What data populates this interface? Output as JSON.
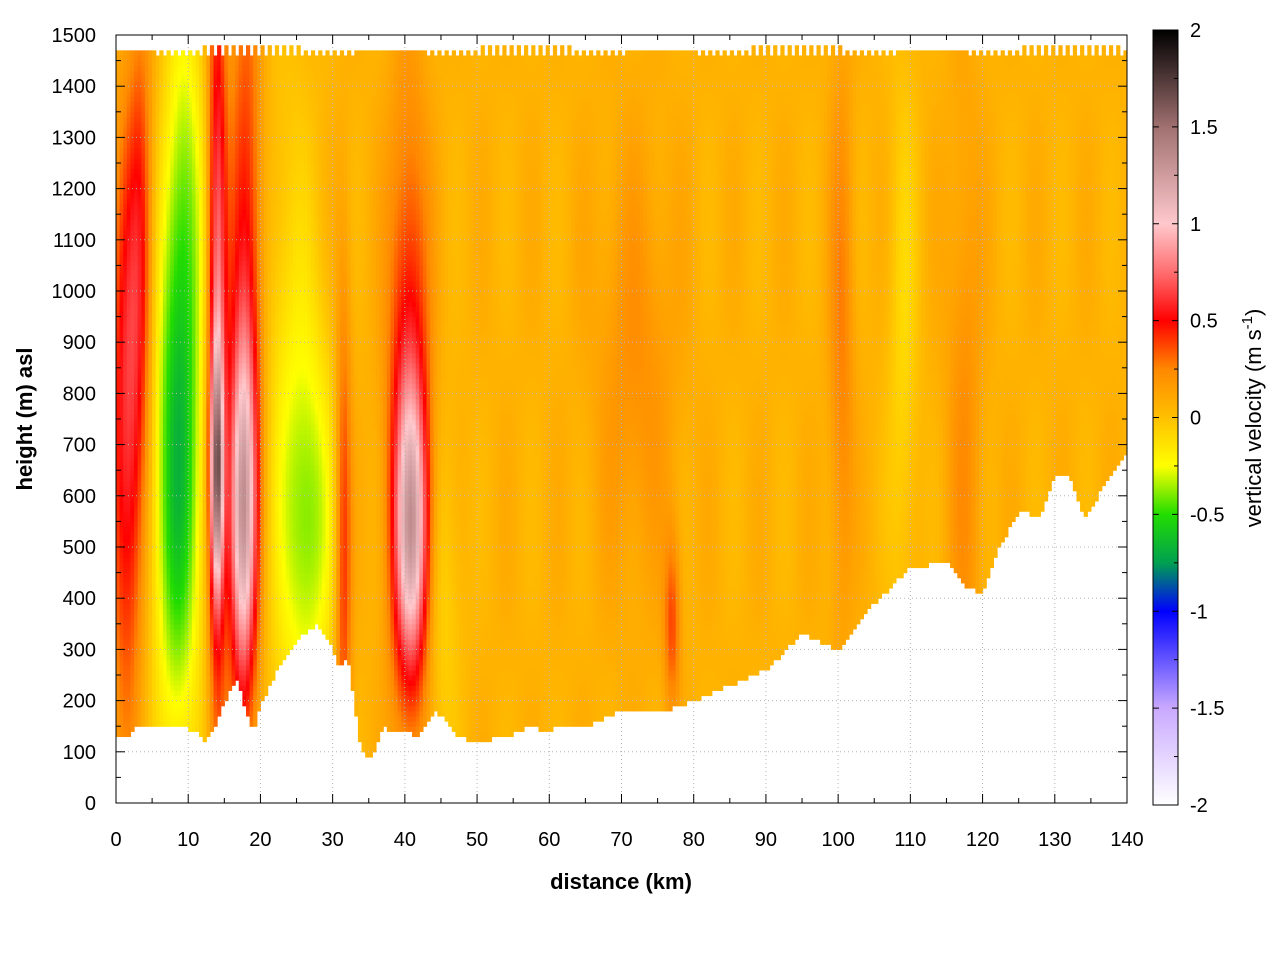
{
  "chart_data": {
    "type": "heatmap",
    "title": "",
    "xlabel": "distance (km)",
    "ylabel": "height (m) asl",
    "xlim": [
      0,
      140
    ],
    "ylim": [
      0,
      1500
    ],
    "x_ticks": [
      0,
      10,
      20,
      30,
      40,
      50,
      60,
      70,
      80,
      90,
      100,
      110,
      120,
      130,
      140
    ],
    "y_ticks": [
      0,
      100,
      200,
      300,
      400,
      500,
      600,
      700,
      800,
      900,
      1000,
      1100,
      1200,
      1300,
      1400,
      1500
    ],
    "grid": true,
    "colorbar": {
      "label_main": "vertical velocity (m s",
      "label_sup": "-1",
      "label_end": ")",
      "range": [
        -2,
        2
      ],
      "ticks": [
        "2",
        "1.5",
        "1",
        "0.5",
        "0",
        "-0.5",
        "-1",
        "-1.5",
        "-2"
      ],
      "tick_values": [
        2,
        1.5,
        1,
        0.5,
        0,
        -0.5,
        -1,
        -1.5,
        -2
      ],
      "colors": [
        {
          "value": -2.0,
          "color": "#ffffff"
        },
        {
          "value": -1.5,
          "color": "#c9a9ff"
        },
        {
          "value": -1.0,
          "color": "#0000ff"
        },
        {
          "value": -0.75,
          "color": "#00a050"
        },
        {
          "value": -0.5,
          "color": "#22dd00"
        },
        {
          "value": -0.25,
          "color": "#ffff00"
        },
        {
          "value": 0.0,
          "color": "#ffc000"
        },
        {
          "value": 0.25,
          "color": "#ff8800"
        },
        {
          "value": 0.5,
          "color": "#ff0000"
        },
        {
          "value": 0.75,
          "color": "#ff6e70"
        },
        {
          "value": 1.0,
          "color": "#ffc8cc"
        },
        {
          "value": 1.5,
          "color": "#a07070"
        },
        {
          "value": 2.0,
          "color": "#000000"
        }
      ]
    },
    "ground_profile": {
      "x": [
        0,
        1.5,
        3,
        5,
        7,
        9,
        11,
        12.5,
        14,
        16,
        17,
        18,
        19,
        20,
        22,
        24,
        26,
        28,
        29,
        30,
        31,
        32,
        33,
        34,
        35,
        36,
        37,
        38,
        40,
        42,
        44,
        45,
        47,
        50,
        52,
        55,
        57,
        60,
        62,
        65,
        70,
        75,
        80,
        85,
        90,
        95,
        100,
        105,
        110,
        115,
        118,
        120,
        122,
        125,
        128,
        130,
        132,
        134,
        136,
        138,
        140
      ],
      "height": [
        130,
        125,
        150,
        145,
        155,
        150,
        140,
        120,
        160,
        230,
        240,
        175,
        140,
        190,
        250,
        300,
        330,
        350,
        330,
        300,
        260,
        290,
        200,
        100,
        85,
        110,
        150,
        140,
        140,
        130,
        180,
        170,
        135,
        115,
        125,
        135,
        150,
        140,
        155,
        150,
        180,
        175,
        200,
        230,
        260,
        330,
        300,
        390,
        460,
        470,
        420,
        410,
        490,
        570,
        560,
        640,
        645,
        560,
        600,
        650,
        690
      ]
    },
    "top_height": 1480,
    "features": [
      {
        "x": 1.5,
        "height": 720,
        "sigma_x": 1.6,
        "sigma_h": 380,
        "value": 0.55
      },
      {
        "x": 3.5,
        "height": 1100,
        "sigma_x": 1.2,
        "sigma_h": 300,
        "value": 0.35
      },
      {
        "x": 8.5,
        "height": 620,
        "sigma_x": 2.4,
        "sigma_h": 360,
        "value": -0.65
      },
      {
        "x": 9.5,
        "height": 1200,
        "sigma_x": 2.0,
        "sigma_h": 300,
        "value": -0.35
      },
      {
        "x": 14,
        "height": 900,
        "sigma_x": 0.9,
        "sigma_h": 520,
        "value": 0.75
      },
      {
        "x": 14,
        "height": 650,
        "sigma_x": 0.6,
        "sigma_h": 160,
        "value": 1.0
      },
      {
        "x": 17.5,
        "height": 560,
        "sigma_x": 1.3,
        "sigma_h": 230,
        "value": 0.9
      },
      {
        "x": 18,
        "height": 900,
        "sigma_x": 1.6,
        "sigma_h": 500,
        "value": 0.5
      },
      {
        "x": 24,
        "height": 700,
        "sigma_x": 3.0,
        "sigma_h": 500,
        "value": -0.2
      },
      {
        "x": 27,
        "height": 550,
        "sigma_x": 2.5,
        "sigma_h": 250,
        "value": -0.35
      },
      {
        "x": 31.5,
        "height": 500,
        "sigma_x": 0.8,
        "sigma_h": 350,
        "value": 0.4
      },
      {
        "x": 41,
        "height": 530,
        "sigma_x": 1.7,
        "sigma_h": 200,
        "value": 0.9
      },
      {
        "x": 40.5,
        "height": 800,
        "sigma_x": 2.0,
        "sigma_h": 400,
        "value": 0.45
      },
      {
        "x": 45,
        "height": 400,
        "sigma_x": 2.0,
        "sigma_h": 250,
        "value": -0.15
      },
      {
        "x": 77,
        "height": 350,
        "sigma_x": 0.8,
        "sigma_h": 120,
        "value": 0.3
      },
      {
        "x": 72,
        "height": 850,
        "sigma_x": 4.0,
        "sigma_h": 300,
        "value": 0.15
      },
      {
        "x": 100.5,
        "height": 900,
        "sigma_x": 1.2,
        "sigma_h": 400,
        "value": 0.2
      },
      {
        "x": 109,
        "height": 900,
        "sigma_x": 1.5,
        "sigma_h": 400,
        "value": -0.15
      },
      {
        "x": 117.5,
        "height": 700,
        "sigma_x": 1.8,
        "sigma_h": 500,
        "value": 0.15
      }
    ]
  }
}
